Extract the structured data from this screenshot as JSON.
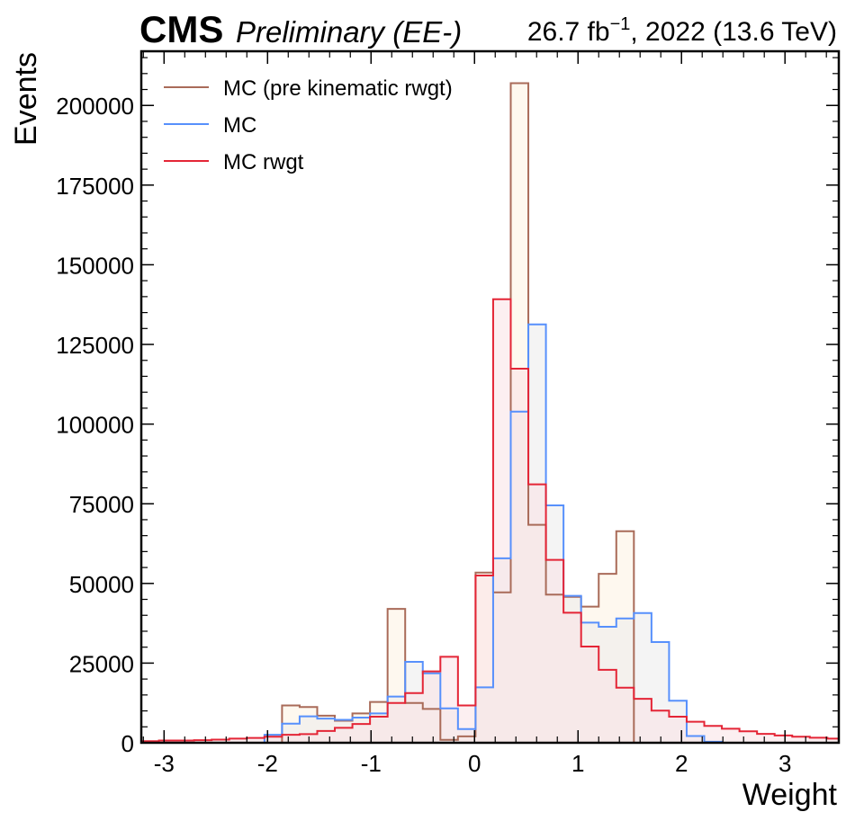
{
  "header": {
    "experiment": "CMS",
    "status": "Preliminary (EE-)",
    "lumi_value": "26.7 fb",
    "lumi_exp": "−1",
    "lumi_rest": ", 2022 (13.6 TeV)"
  },
  "chart_data": {
    "type": "histogram",
    "xlabel": "Weight",
    "ylabel": "Events",
    "xlim": [
      -3.22,
      3.52
    ],
    "ylim": [
      0,
      217000
    ],
    "x_ticks": [
      -3,
      -2,
      -1,
      0,
      1,
      2,
      3
    ],
    "x_tick_labels": [
      "-3",
      "-2",
      "-1",
      "0",
      "1",
      "2",
      "3"
    ],
    "y_ticks": [
      0,
      25000,
      50000,
      75000,
      100000,
      125000,
      150000,
      175000,
      200000
    ],
    "y_tick_labels": [
      "0",
      "25000",
      "50000",
      "75000",
      "100000",
      "125000",
      "150000",
      "175000",
      "200000"
    ],
    "bin_edges": [
      -3.22,
      -3.05,
      -2.88,
      -2.71,
      -2.54,
      -2.37,
      -2.2,
      -2.03,
      -1.86,
      -1.69,
      -1.52,
      -1.35,
      -1.18,
      -1.01,
      -0.84,
      -0.67,
      -0.5,
      -0.33,
      -0.16,
      0.01,
      0.18,
      0.35,
      0.52,
      0.69,
      0.86,
      1.03,
      1.2,
      1.37,
      1.54,
      1.71,
      1.88,
      2.05,
      2.22,
      2.39,
      2.56,
      2.73,
      2.9,
      3.07,
      3.24,
      3.41,
      3.52
    ],
    "legend_position": "top-left",
    "series": [
      {
        "name": "MC (pre kinematic rwgt)",
        "color": "#a96b59",
        "fill": "#fdf2e1",
        "values": [
          0,
          0,
          0,
          0,
          0,
          0,
          0,
          0,
          11700,
          11200,
          8500,
          6900,
          9200,
          12800,
          42000,
          12500,
          10600,
          900,
          2000,
          53400,
          47200,
          207000,
          68400,
          46500,
          45800,
          42700,
          53000,
          66400,
          0,
          0,
          0,
          0,
          0,
          0,
          0,
          0,
          0,
          0,
          0,
          0
        ]
      },
      {
        "name": "MC",
        "color": "#5790fc",
        "fill": "#ebebeb",
        "values": [
          0,
          0,
          0,
          0,
          0,
          0,
          0,
          2500,
          6000,
          8300,
          7600,
          7200,
          7900,
          9200,
          14500,
          25400,
          21800,
          10800,
          4300,
          17400,
          57900,
          103900,
          131300,
          74500,
          46100,
          37700,
          36400,
          39000,
          40700,
          31600,
          13200,
          2100,
          300,
          0,
          0,
          0,
          0,
          0,
          0,
          0
        ]
      },
      {
        "name": "MC rwgt",
        "color": "#e42536",
        "fill": "#f9e2e5",
        "values": [
          500,
          700,
          700,
          800,
          1000,
          1300,
          1500,
          1900,
          2500,
          2700,
          3700,
          4700,
          5900,
          8200,
          12500,
          15600,
          22400,
          27000,
          11700,
          52500,
          139200,
          117400,
          81100,
          57400,
          40800,
          30200,
          22900,
          17300,
          13800,
          10100,
          8200,
          6600,
          5300,
          4400,
          3600,
          2800,
          2300,
          1900,
          1600,
          1300
        ]
      }
    ]
  }
}
